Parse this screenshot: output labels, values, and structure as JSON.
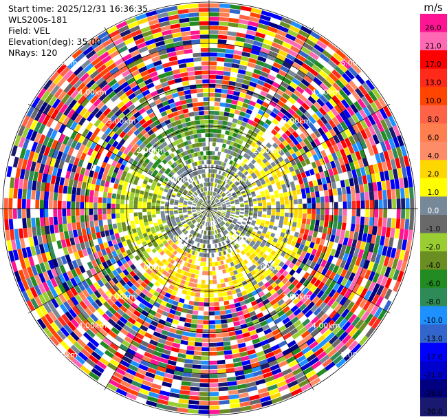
{
  "header": {
    "start_time": "Start time: 2025/12/31 16:36:35",
    "instrument": "WLS200s-181",
    "field": "Field: VEL",
    "elevation": "Elevation(deg): 35.00",
    "nrays": "NRays: 120"
  },
  "chart_data": {
    "type": "ppi",
    "field": "VEL",
    "n_rays": 120,
    "elevation_deg": 35.0,
    "range_rings_km": [
      1.0,
      2.0,
      3.0,
      4.0,
      5.0
    ],
    "range_labels": [
      "1.00km",
      "2.00km",
      "3.00km",
      "4.00km",
      "5.00km"
    ],
    "colorbar": {
      "unit": "m/s",
      "tick_labels": [
        "26.0",
        "21.0",
        "17.0",
        "13.0",
        "10.0",
        "8.0",
        "6.0",
        "4.0",
        "2.0",
        "1.0",
        "0.0",
        "-1.0",
        "-2.0",
        "-4.0",
        "-6.0",
        "-8.0",
        "-10.0",
        "-13.0",
        "-17.0",
        "-21.0",
        "-26.0",
        "-30.0"
      ],
      "colors": [
        "#ff1493",
        "#ff69b4",
        "#ff0000",
        "#ff2a1a",
        "#ff4500",
        "#ff6347",
        "#ff7f50",
        "#ff8c69",
        "#ffd700",
        "#ffff00",
        "#778899",
        "#696969",
        "#9acd32",
        "#6b8e23",
        "#228b22",
        "#2e8b57",
        "#1e90ff",
        "#3366cc",
        "#0000ff",
        "#0000cd",
        "#000080",
        "#191970"
      ]
    }
  }
}
